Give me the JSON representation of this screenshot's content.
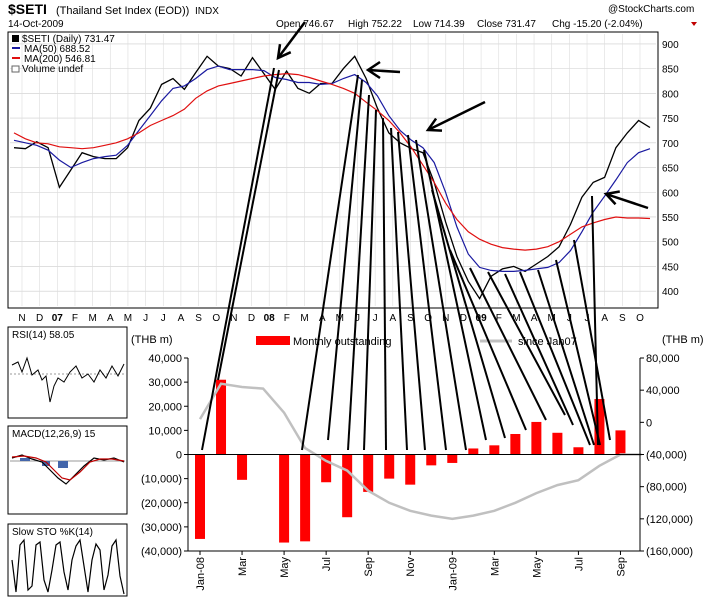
{
  "header": {
    "symbol": "$SETI",
    "name": "(Thailand Set Index (EOD))",
    "exchange": "INDX",
    "date": "14-Oct-2009",
    "open": "Open 746.67",
    "high": "High 752.22",
    "low": "Low 714.39",
    "close": "Close 731.47",
    "chg": "Chg -15.20 (-2.04%)",
    "watermark": "@StockCharts.com",
    "legend_price": "$SETI (Daily) 731.47",
    "legend_ma50": "MA(50) 688.52",
    "legend_ma200": "MA(200) 546.81",
    "legend_volume": "Volume undef"
  },
  "colors": {
    "price": "#000000",
    "ma50": "#1a1aa0",
    "ma200": "#e01010",
    "bar": "#ff0000",
    "since_line": "#c0c0c0",
    "grid": "#c8c8c8"
  },
  "mini": {
    "rsi": "RSI(14) 58.05",
    "macd": "MACD(12,26,9) 15",
    "sto": "Slow STO %K(14)"
  },
  "chart_data": [
    {
      "type": "line",
      "title": "$SETI (Daily) 731.47",
      "x_ticks": [
        "N",
        "D",
        "07",
        "F",
        "M",
        "A",
        "M",
        "J",
        "J",
        "A",
        "S",
        "O",
        "N",
        "D",
        "08",
        "F",
        "M",
        "A",
        "M",
        "J",
        "J",
        "A",
        "S",
        "O",
        "N",
        "D",
        "09",
        "F",
        "M",
        "A",
        "M",
        "J",
        "J",
        "A",
        "S",
        "O"
      ],
      "y_ticks": [
        "900",
        "850",
        "800",
        "750",
        "700",
        "650",
        "600",
        "550",
        "500",
        "450",
        "400"
      ],
      "ylim": [
        370,
        920
      ],
      "series": [
        {
          "name": "$SETI (Daily) 731.47",
          "values": [
            690,
            688,
            702,
            690,
            610,
            645,
            680,
            672,
            668,
            668,
            690,
            745,
            770,
            818,
            830,
            808,
            842,
            875,
            855,
            850,
            835,
            872,
            840,
            808,
            845,
            810,
            800,
            820,
            820,
            850,
            875,
            830,
            770,
            720,
            700,
            688,
            680,
            620,
            540,
            470,
            420,
            385,
            430,
            445,
            450,
            440,
            455,
            470,
            490,
            535,
            590,
            620,
            630,
            690,
            720,
            745,
            731
          ]
        },
        {
          "name": "MA(50) 688.52",
          "values": [
            705,
            700,
            695,
            685,
            665,
            650,
            660,
            668,
            672,
            675,
            695,
            725,
            755,
            785,
            810,
            815,
            830,
            848,
            855,
            848,
            848,
            848,
            846,
            832,
            828,
            822,
            822,
            818,
            820,
            830,
            838,
            822,
            795,
            755,
            725,
            705,
            690,
            660,
            600,
            530,
            475,
            448,
            442,
            440,
            440,
            442,
            445,
            448,
            458,
            482,
            520,
            560,
            592,
            625,
            660,
            680,
            688
          ]
        },
        {
          "name": "MA(200) 546.81",
          "values": [
            720,
            708,
            700,
            698,
            692,
            690,
            688,
            690,
            695,
            700,
            708,
            720,
            735,
            745,
            755,
            768,
            790,
            805,
            815,
            820,
            825,
            830,
            835,
            838,
            840,
            838,
            832,
            825,
            818,
            810,
            800,
            782,
            765,
            745,
            720,
            690,
            655,
            620,
            578,
            545,
            520,
            505,
            495,
            488,
            485,
            483,
            485,
            490,
            500,
            515,
            530,
            538,
            545,
            550,
            548,
            548,
            547
          ]
        }
      ]
    },
    {
      "type": "bar",
      "categories": [
        "Jan-08",
        "Feb-08",
        "Mar-08",
        "Apr-08",
        "May-08",
        "Jun-08",
        "Jul-08",
        "Aug-08",
        "Sep-08",
        "Oct-08",
        "Nov-08",
        "Dec-08",
        "Jan-09",
        "Feb-09",
        "Mar-09",
        "Apr-09",
        "May-09",
        "Jun-09",
        "Jul-09",
        "Aug-09",
        "Sep-09",
        "Oct-09"
      ],
      "x_ticks": [
        "Jan-08",
        "Mar",
        "May",
        "Jul",
        "Sep",
        "Nov",
        "Jan-09",
        "Mar",
        "May",
        "Jul",
        "Sep"
      ],
      "ylabel_left": "(THB m)",
      "ylabel_right": "(THB m)",
      "y_ticks_left": [
        "40,000",
        "30,000",
        "20,000",
        "10,000",
        "0",
        "(10,000)",
        "(20,000)",
        "(30,000)",
        "(40,000)"
      ],
      "y_ticks_right": [
        "80,000",
        "40,000",
        "0",
        "(40,000)",
        "(80,000)",
        "(120,000)",
        "(160,000)"
      ],
      "ylim_left": [
        -40000,
        40000
      ],
      "ylim_right": [
        -160000,
        80000
      ],
      "series": [
        {
          "name": "Monthly outstanding",
          "axis": "left",
          "values": [
            -35000,
            31000,
            -10500,
            0,
            -36500,
            -36000,
            -11500,
            -26000,
            -15500,
            -10000,
            -12500,
            -4500,
            -3500,
            2500,
            3800,
            8500,
            13500,
            9000,
            3000,
            23000,
            10000,
            0
          ]
        },
        {
          "name": "since Jan07",
          "axis": "right",
          "values": [
            4000,
            48000,
            44000,
            42000,
            12000,
            -32000,
            -48000,
            -60000,
            -85000,
            -100000,
            -110000,
            -116000,
            -120000,
            -116000,
            -110000,
            -100000,
            -88000,
            -78000,
            -72000,
            -54000,
            -40000,
            -40000
          ]
        }
      ]
    }
  ]
}
